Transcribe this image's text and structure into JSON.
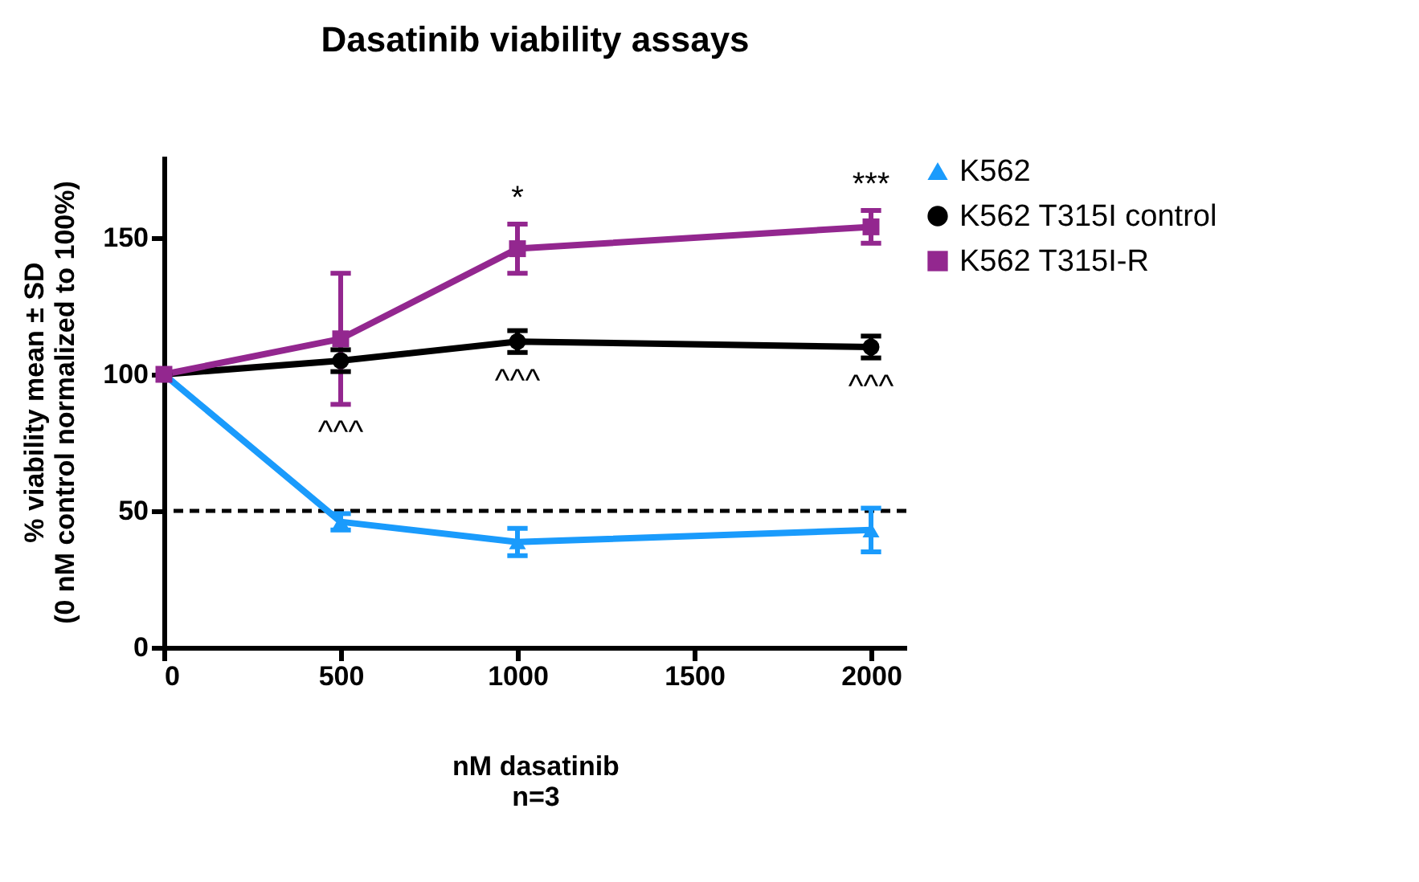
{
  "chart_data": {
    "type": "line",
    "title": "Dasatinib viability assays",
    "xlabel": "nM dasatinib",
    "ylabel": "% viability mean ± SD\n(0 nM control normalized to 100%)",
    "x": [
      0,
      500,
      1000,
      2000
    ],
    "series": [
      {
        "name": "K562",
        "color": "#1a9bfc",
        "marker": "triangle",
        "values": [
          100,
          46,
          38.6,
          43
        ],
        "errors": [
          null,
          3,
          5,
          8
        ]
      },
      {
        "name": "K562 T315I control",
        "color": "#000000",
        "marker": "circle",
        "values": [
          100,
          105,
          112,
          110
        ],
        "errors": [
          null,
          4,
          4,
          4
        ]
      },
      {
        "name": "K562 T315I-R",
        "color": "#93278f",
        "marker": "square",
        "values": [
          100,
          113,
          146,
          154
        ],
        "errors": [
          null,
          24,
          9,
          6
        ]
      }
    ],
    "xlim": [
      0,
      2100
    ],
    "xticks": [
      0,
      500,
      {
        "value": 1000,
        "label": "1000"
      },
      {
        "value": 1500,
        "label": "1500"
      },
      {
        "value": 2000,
        "label": "2000"
      }
    ],
    "ylim": [
      0,
      180
    ],
    "yticks": [
      0,
      50,
      100,
      150
    ],
    "ref_lines": [
      {
        "axis": "y",
        "value": 50,
        "color": "#000000",
        "line_style": "dashed"
      }
    ],
    "annotations": [
      {
        "text": "^^^",
        "x": 500,
        "y": 105
      },
      {
        "text": "^^^",
        "x": 1000,
        "y": 112
      },
      {
        "text": "^^^",
        "x": 2000,
        "y": 110
      },
      {
        "text": "*",
        "x": 1000,
        "y": 146
      },
      {
        "text": "***",
        "x": 2000,
        "y": 154
      },
      "n=3"
    ],
    "grid": false,
    "legend": "top right",
    "line_style": "solid"
  }
}
